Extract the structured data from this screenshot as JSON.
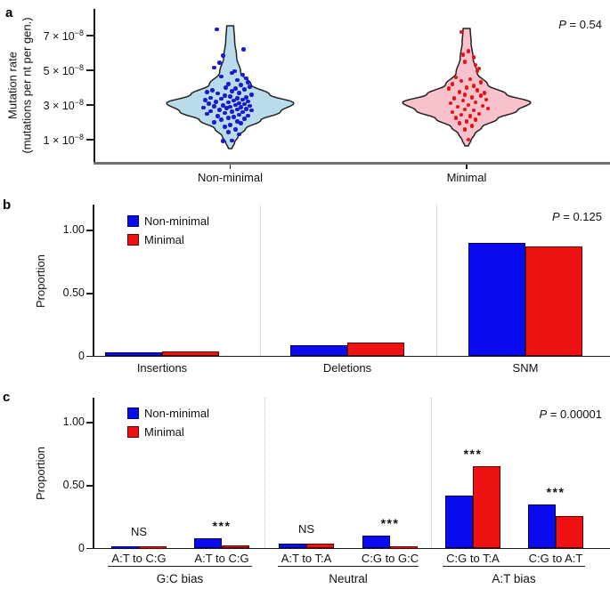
{
  "panel_labels": {
    "a": "a",
    "b": "b",
    "c": "c"
  },
  "colors": {
    "bar_blue": "#0b0bef",
    "bar_blue_border": "#000060",
    "bar_red": "#ee1212",
    "bar_red_border": "#600000",
    "violin_blue_fill": "#b9dcec",
    "violin_pink_fill": "#f9c1cc",
    "violin_stroke": "#222222",
    "dot_blue": "#1a1ad2",
    "dot_red": "#e41414",
    "axis": "#1a1a1a",
    "axis_gray": "#6f6f6f",
    "dotted_divider": "#bcbcbc"
  },
  "chart_data": [
    {
      "type": "violin-scatter",
      "panel": "a",
      "p_value": "P = 0.54",
      "ylabel": "Mutation rate (mutations per nt per gen.)",
      "ylabel_lines": [
        "Mutation rate",
        "(mutations per nt per gen.)"
      ],
      "yticks": [
        {
          "value_e8": 7,
          "base": "7 × 10",
          "exp": "−8"
        },
        {
          "value_e8": 5,
          "base": "5 × 10",
          "exp": "−8"
        },
        {
          "value_e8": 3,
          "base": "3 × 10",
          "exp": "−8"
        },
        {
          "value_e8": 1,
          "base": "1 × 10",
          "exp": "−8"
        }
      ],
      "y_unit": "×10−8 mutations per nt per gen.",
      "series": [
        {
          "name": "Non-minimal",
          "fill_key": "violin_blue_fill",
          "dot_key": "dot_blue",
          "points": [
            [
              -15,
              7.35
            ],
            [
              15,
              6.2
            ],
            [
              -8,
              5.85
            ],
            [
              -12,
              5.45
            ],
            [
              -18,
              5.15
            ],
            [
              5,
              4.95
            ],
            [
              2,
              4.85
            ],
            [
              14,
              4.75
            ],
            [
              -10,
              4.65
            ],
            [
              18,
              4.55
            ],
            [
              8,
              4.45
            ],
            [
              20,
              4.3
            ],
            [
              -2,
              4.2
            ],
            [
              12,
              4.15
            ],
            [
              22,
              4.05
            ],
            [
              -5,
              4.0
            ],
            [
              6,
              3.95
            ],
            [
              16,
              3.9
            ],
            [
              -20,
              3.85
            ],
            [
              2,
              3.8
            ],
            [
              -26,
              3.75
            ],
            [
              10,
              3.7
            ],
            [
              -14,
              3.68
            ],
            [
              24,
              3.6
            ],
            [
              -6,
              3.55
            ],
            [
              0,
              3.5
            ],
            [
              18,
              3.45
            ],
            [
              -22,
              3.42
            ],
            [
              8,
              3.38
            ],
            [
              -10,
              3.35
            ],
            [
              14,
              3.3
            ],
            [
              -28,
              3.28
            ],
            [
              4,
              3.25
            ],
            [
              20,
              3.2
            ],
            [
              -16,
              3.18
            ],
            [
              -2,
              3.15
            ],
            [
              10,
              3.1
            ],
            [
              -24,
              3.08
            ],
            [
              16,
              3.05
            ],
            [
              6,
              3.0
            ],
            [
              -8,
              2.98
            ],
            [
              22,
              2.95
            ],
            [
              -18,
              2.92
            ],
            [
              0,
              2.9
            ],
            [
              12,
              2.88
            ],
            [
              -30,
              2.85
            ],
            [
              -4,
              2.82
            ],
            [
              18,
              2.78
            ],
            [
              8,
              2.75
            ],
            [
              -12,
              2.72
            ],
            [
              24,
              2.7
            ],
            [
              -22,
              2.65
            ],
            [
              2,
              2.62
            ],
            [
              14,
              2.6
            ],
            [
              -6,
              2.55
            ],
            [
              -26,
              2.5
            ],
            [
              10,
              2.45
            ],
            [
              20,
              2.4
            ],
            [
              -14,
              2.35
            ],
            [
              4,
              2.3
            ],
            [
              -2,
              2.25
            ],
            [
              16,
              2.2
            ],
            [
              -10,
              2.15
            ],
            [
              8,
              2.05
            ],
            [
              -18,
              2.0
            ],
            [
              12,
              1.95
            ],
            [
              0,
              1.85
            ],
            [
              -6,
              1.75
            ],
            [
              6,
              1.6
            ],
            [
              -2,
              1.45
            ],
            [
              10,
              1.3
            ],
            [
              2,
              0.95
            ],
            [
              -8,
              0.92
            ]
          ]
        },
        {
          "name": "Minimal",
          "fill_key": "violin_pink_fill",
          "dot_key": "dot_red",
          "points": [
            [
              -6,
              7.2
            ],
            [
              2,
              6.1
            ],
            [
              -4,
              5.9
            ],
            [
              8,
              5.75
            ],
            [
              -2,
              5.5
            ],
            [
              10,
              5.3
            ],
            [
              14,
              5.1
            ],
            [
              12,
              4.95
            ],
            [
              -12,
              4.6
            ],
            [
              4,
              4.5
            ],
            [
              -6,
              4.4
            ],
            [
              16,
              4.3
            ],
            [
              -16,
              4.2
            ],
            [
              8,
              4.1
            ],
            [
              0,
              4.0
            ],
            [
              -20,
              3.95
            ],
            [
              12,
              3.85
            ],
            [
              -8,
              3.75
            ],
            [
              20,
              3.7
            ],
            [
              -2,
              3.6
            ],
            [
              16,
              3.55
            ],
            [
              6,
              3.45
            ],
            [
              -14,
              3.4
            ],
            [
              22,
              3.3
            ],
            [
              -4,
              3.25
            ],
            [
              10,
              3.15
            ],
            [
              -18,
              3.1
            ],
            [
              2,
              3.0
            ],
            [
              18,
              2.95
            ],
            [
              -10,
              2.9
            ],
            [
              24,
              2.8
            ],
            [
              -2,
              2.75
            ],
            [
              8,
              2.7
            ],
            [
              -16,
              2.6
            ],
            [
              14,
              2.5
            ],
            [
              -6,
              2.45
            ],
            [
              4,
              2.35
            ],
            [
              -12,
              2.25
            ],
            [
              10,
              2.15
            ],
            [
              0,
              2.05
            ],
            [
              -8,
              1.95
            ],
            [
              6,
              1.8
            ],
            [
              -2,
              1.6
            ],
            [
              2,
              1.0
            ]
          ]
        }
      ]
    },
    {
      "type": "bar",
      "panel": "b",
      "p_value": "P = 0.125",
      "ylabel": "Proportion",
      "legend": [
        "Non-minimal",
        "Minimal"
      ],
      "yticks": [
        {
          "label": "1.00",
          "value": 1.0
        },
        {
          "label": "0.50",
          "value": 0.5
        },
        {
          "label": "0",
          "value": 0.0
        }
      ],
      "ylim": [
        0,
        1.15
      ],
      "categories": [
        "Insertions",
        "Deletions",
        "SNM"
      ],
      "series": [
        {
          "name": "Non-minimal",
          "values": [
            0.03,
            0.085,
            0.9
          ]
        },
        {
          "name": "Minimal",
          "values": [
            0.04,
            0.11,
            0.87
          ]
        }
      ]
    },
    {
      "type": "bar",
      "panel": "c",
      "p_value": "P = 0.00001",
      "ylabel": "Proportion",
      "legend": [
        "Non-minimal",
        "Minimal"
      ],
      "yticks": [
        {
          "label": "1.00",
          "value": 1.0
        },
        {
          "label": "0.50",
          "value": 0.5
        },
        {
          "label": "0",
          "value": 0.0
        }
      ],
      "ylim": [
        0,
        1.15
      ],
      "groups": [
        {
          "name": "G:C bias",
          "pairs": [
            {
              "label": "A:T to C:G",
              "sig": "NS",
              "non_minimal": 0.015,
              "minimal": 0.015
            },
            {
              "label": "A:T to C:G",
              "sig": "***",
              "non_minimal": 0.08,
              "minimal": 0.025
            }
          ]
        },
        {
          "name": "Neutral",
          "pairs": [
            {
              "label": "A:T to T:A",
              "sig": "NS",
              "non_minimal": 0.04,
              "minimal": 0.04
            },
            {
              "label": "C:G to G:C",
              "sig": "***",
              "non_minimal": 0.105,
              "minimal": 0.015
            }
          ]
        },
        {
          "name": "A:T bias",
          "pairs": [
            {
              "label": "C:G to T:A",
              "sig": "***",
              "non_minimal": 0.42,
              "minimal": 0.655
            },
            {
              "label": "C:G to A:T",
              "sig": "***",
              "non_minimal": 0.35,
              "minimal": 0.26
            }
          ]
        }
      ]
    }
  ]
}
